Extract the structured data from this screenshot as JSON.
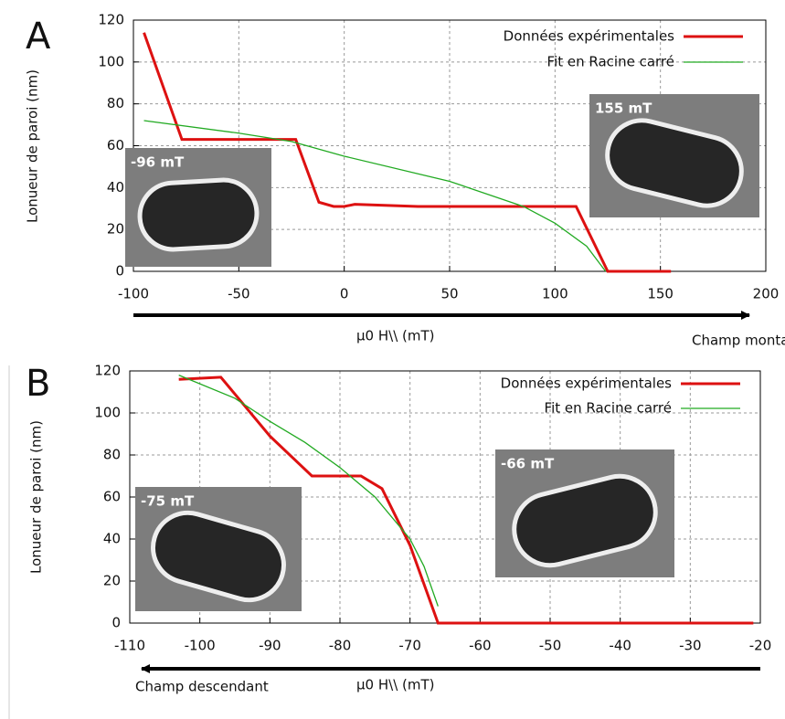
{
  "chart_data": [
    {
      "type": "line",
      "panel": "A",
      "ylabel": "Lonueur de paroi (nm)",
      "xlabel": "μ0  H\\\\ (mT)",
      "arrow_label": "Champ montant",
      "xlim": [
        -100,
        200
      ],
      "xticks": [
        -100,
        -50,
        0,
        50,
        100,
        150,
        200
      ],
      "ylim": [
        0,
        120
      ],
      "yticks": [
        0,
        20,
        40,
        60,
        80,
        100,
        120
      ],
      "grid": true,
      "series": [
        {
          "name": "Données expérimentales",
          "color": "#dd1111",
          "x": [
            -95,
            -77,
            -23,
            -12,
            -5,
            0,
            5,
            35,
            110,
            125,
            155
          ],
          "values": [
            114,
            63,
            63,
            33,
            31,
            31,
            32,
            31,
            31,
            0,
            0
          ]
        },
        {
          "name": "Fit en Racine carré",
          "color": "#22aa22",
          "x": [
            -95,
            -50,
            -25,
            0,
            50,
            85,
            100,
            115,
            124
          ],
          "values": [
            72,
            66,
            62,
            55,
            43,
            31,
            23,
            12,
            0
          ]
        }
      ],
      "insets": [
        {
          "label": "-96 mT"
        },
        {
          "label": "155 mT"
        }
      ]
    },
    {
      "type": "line",
      "panel": "B",
      "ylabel": "Lonueur de paroi (nm)",
      "xlabel": "μ0  H\\\\ (mT)",
      "arrow_label": "Champ descendant",
      "xlim": [
        -110,
        -20
      ],
      "xticks": [
        -110,
        -100,
        -90,
        -80,
        -70,
        -60,
        -50,
        -40,
        -30,
        -20
      ],
      "ylim": [
        0,
        120
      ],
      "yticks": [
        0,
        20,
        40,
        60,
        80,
        100,
        120
      ],
      "grid": true,
      "series": [
        {
          "name": "Données expérimentales",
          "color": "#dd1111",
          "x": [
            -103,
            -97,
            -90,
            -84,
            -77,
            -74,
            -70,
            -66,
            -21
          ],
          "values": [
            116,
            117,
            89,
            70,
            70,
            64,
            37,
            0,
            0
          ]
        },
        {
          "name": "Fit en Racine carré",
          "color": "#22aa22",
          "x": [
            -103,
            -95,
            -90,
            -85,
            -80,
            -75,
            -70,
            -68,
            -66
          ],
          "values": [
            118,
            107,
            96,
            86,
            74,
            60,
            40,
            27,
            8
          ]
        }
      ],
      "insets": [
        {
          "label": "-75 mT"
        },
        {
          "label": "-66 mT"
        }
      ]
    }
  ]
}
